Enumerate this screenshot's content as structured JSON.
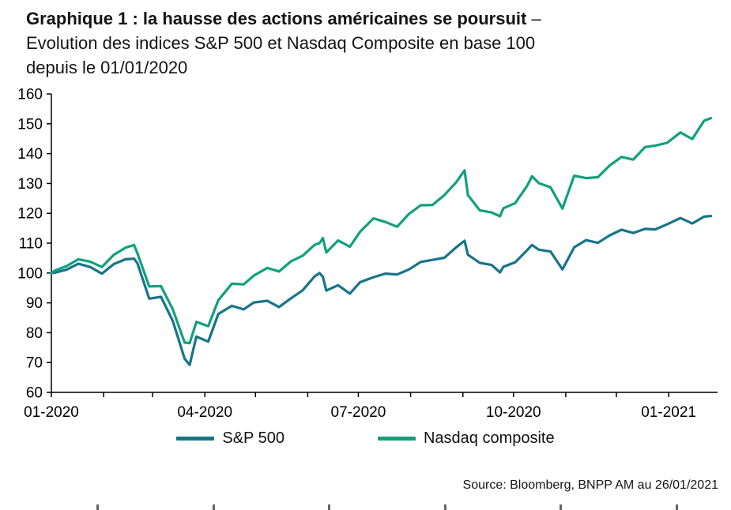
{
  "header": {
    "title_line1_bold": "Graphique 1 : la hausse des actions américaines se poursuit",
    "title_line1_rest": " –",
    "title_line2": "Evolution des indices S&P 500 et Nasdaq Composite en base 100",
    "title_line3": "depuis le 01/01/2020"
  },
  "footer": {
    "source": "Source: Bloomberg, BNPP AM au  26/01/2021"
  },
  "chart_data": {
    "type": "line",
    "title": "Evolution des indices S&P 500 et Nasdaq Composite en base 100 depuis le 01/01/2020",
    "x_unit": "days since 2020-01-01",
    "xlim": [
      0,
      395
    ],
    "ylim": [
      60,
      160
    ],
    "y_tick_step": 10,
    "grid": false,
    "legend_position": "bottom",
    "x_month_ticks": [
      0,
      31,
      60,
      91,
      121,
      152,
      182,
      213,
      244,
      274,
      305,
      335,
      366
    ],
    "x_tick_labels": [
      {
        "day": 0,
        "label": "01-2020"
      },
      {
        "day": 91,
        "label": "04-2020"
      },
      {
        "day": 182,
        "label": "07-2020"
      },
      {
        "day": 274,
        "label": "10-2020"
      },
      {
        "day": 366,
        "label": "01-2021"
      }
    ],
    "x": [
      0,
      2,
      9,
      16,
      23,
      30,
      37,
      44,
      49,
      51,
      58,
      65,
      72,
      79,
      82,
      86,
      93,
      99,
      107,
      114,
      120,
      128,
      135,
      142,
      149,
      156,
      159,
      161,
      163,
      170,
      177,
      183,
      191,
      198,
      205,
      212,
      219,
      226,
      233,
      240,
      245,
      247,
      254,
      261,
      266,
      268,
      275,
      282,
      285,
      289,
      296,
      303,
      310,
      317,
      324,
      331,
      338,
      345,
      352,
      358,
      365,
      373,
      380,
      387,
      391
    ],
    "series": [
      {
        "name": "S&P 500",
        "color": "#17748a",
        "values": [
          100.0,
          100.1,
          101.1,
          103.1,
          102.0,
          99.8,
          103.0,
          104.6,
          104.8,
          103.3,
          91.4,
          92.0,
          83.9,
          71.3,
          69.2,
          78.7,
          77.0,
          86.3,
          89.0,
          87.8,
          90.1,
          90.7,
          88.6,
          91.5,
          94.2,
          98.8,
          100.0,
          98.7,
          94.1,
          95.9,
          93.1,
          96.9,
          98.6,
          99.8,
          99.5,
          101.2,
          103.7,
          104.4,
          105.1,
          108.6,
          110.8,
          106.1,
          103.4,
          102.7,
          100.2,
          102.1,
          103.6,
          107.6,
          109.4,
          107.8,
          107.2,
          101.2,
          108.6,
          111.0,
          110.1,
          112.6,
          114.5,
          113.4,
          114.8,
          114.6,
          116.3,
          118.4,
          116.6,
          118.9,
          119.1
        ]
      },
      {
        "name": "Nasdaq composite",
        "color": "#10a17c",
        "values": [
          100.0,
          100.8,
          102.3,
          104.6,
          103.8,
          102.0,
          106.1,
          108.5,
          109.4,
          106.7,
          95.5,
          95.6,
          87.8,
          76.7,
          76.5,
          83.6,
          82.2,
          90.9,
          96.4,
          96.2,
          99.1,
          101.7,
          100.5,
          103.9,
          105.8,
          109.4,
          110.0,
          111.7,
          106.9,
          110.9,
          108.8,
          113.8,
          118.3,
          117.1,
          115.5,
          119.8,
          122.7,
          122.8,
          126.1,
          130.4,
          134.4,
          126.1,
          121.0,
          120.3,
          119.0,
          121.7,
          123.4,
          129.1,
          132.4,
          130.1,
          128.7,
          121.6,
          132.6,
          131.8,
          132.1,
          136.0,
          138.9,
          138.0,
          142.2,
          142.7,
          143.6,
          147.1,
          144.9,
          151.0,
          151.9
        ]
      }
    ]
  }
}
